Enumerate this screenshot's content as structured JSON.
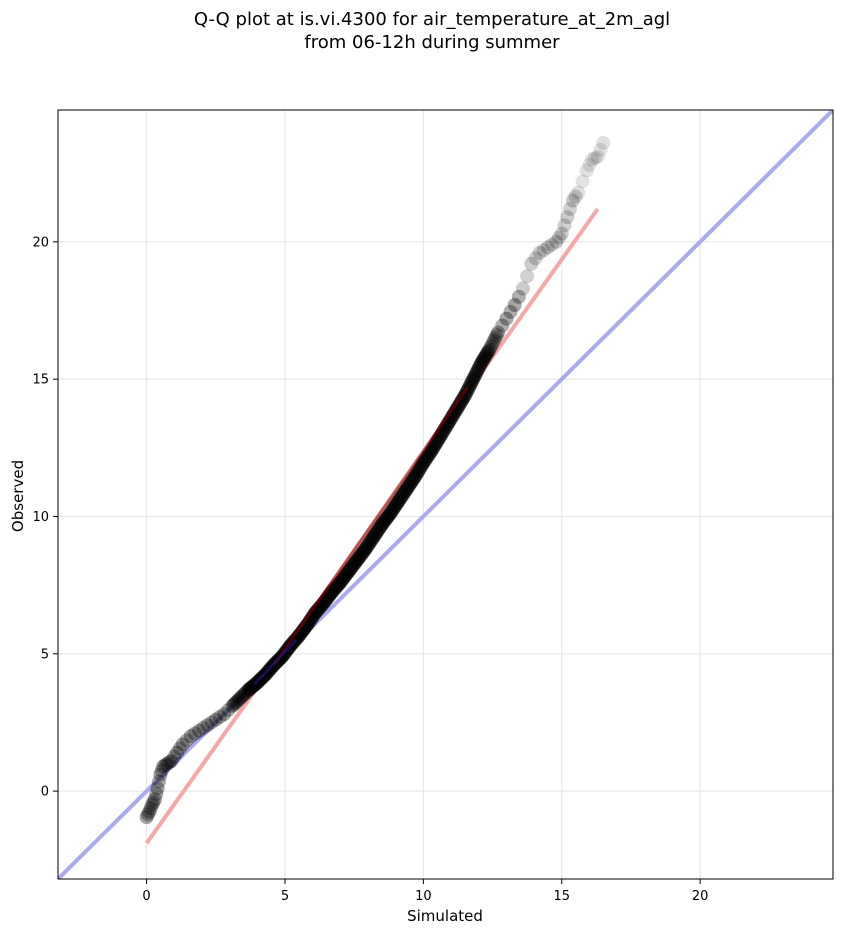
{
  "chart_data": {
    "type": "scatter",
    "title_lines": [
      "Q-Q plot at is.vi.4300 for air_temperature_at_2m_agl",
      "from 06-12h during summer"
    ],
    "xlabel": "Simulated",
    "ylabel": "Observed",
    "xlim": [
      -3.2,
      24.8
    ],
    "ylim": [
      -3.2,
      24.8
    ],
    "xticks": [
      0,
      5,
      10,
      15,
      20
    ],
    "yticks": [
      0,
      5,
      10,
      15,
      20
    ],
    "grid": true,
    "colors": {
      "points": "#000000",
      "identity_line": "#aaaaee",
      "fit_line": "#f4a8a8",
      "fit_core_dark": "#8b0000",
      "fit_core_blue": "#1a1a8a",
      "grid": "#e8e8e8",
      "axes": "#000000"
    },
    "quantiles": [
      {
        "x": 0.0,
        "y": -0.95
      },
      {
        "x": 0.1,
        "y": -0.75
      },
      {
        "x": 0.2,
        "y": -0.5
      },
      {
        "x": 0.3,
        "y": -0.3
      },
      {
        "x": 0.4,
        "y": 0.1
      },
      {
        "x": 0.5,
        "y": 0.6
      },
      {
        "x": 0.6,
        "y": 0.9
      },
      {
        "x": 0.75,
        "y": 1.0
      },
      {
        "x": 0.9,
        "y": 1.1
      },
      {
        "x": 1.1,
        "y": 1.4
      },
      {
        "x": 1.3,
        "y": 1.7
      },
      {
        "x": 1.6,
        "y": 2.0
      },
      {
        "x": 1.9,
        "y": 2.2
      },
      {
        "x": 2.2,
        "y": 2.4
      },
      {
        "x": 2.5,
        "y": 2.6
      },
      {
        "x": 2.8,
        "y": 2.8
      },
      {
        "x": 3.1,
        "y": 3.1
      },
      {
        "x": 3.4,
        "y": 3.4
      },
      {
        "x": 3.7,
        "y": 3.7
      },
      {
        "x": 4.0,
        "y": 3.95
      },
      {
        "x": 4.3,
        "y": 4.25
      },
      {
        "x": 4.6,
        "y": 4.6
      },
      {
        "x": 4.9,
        "y": 4.9
      },
      {
        "x": 5.2,
        "y": 5.3
      },
      {
        "x": 5.5,
        "y": 5.65
      },
      {
        "x": 5.8,
        "y": 6.05
      },
      {
        "x": 6.1,
        "y": 6.5
      },
      {
        "x": 6.4,
        "y": 6.85
      },
      {
        "x": 6.7,
        "y": 7.25
      },
      {
        "x": 7.0,
        "y": 7.6
      },
      {
        "x": 7.3,
        "y": 8.0
      },
      {
        "x": 7.6,
        "y": 8.4
      },
      {
        "x": 7.9,
        "y": 8.8
      },
      {
        "x": 8.2,
        "y": 9.25
      },
      {
        "x": 8.5,
        "y": 9.7
      },
      {
        "x": 8.8,
        "y": 10.1
      },
      {
        "x": 9.1,
        "y": 10.55
      },
      {
        "x": 9.4,
        "y": 11.0
      },
      {
        "x": 9.7,
        "y": 11.45
      },
      {
        "x": 10.0,
        "y": 11.95
      },
      {
        "x": 10.3,
        "y": 12.4
      },
      {
        "x": 10.6,
        "y": 12.9
      },
      {
        "x": 10.9,
        "y": 13.4
      },
      {
        "x": 11.2,
        "y": 13.9
      },
      {
        "x": 11.5,
        "y": 14.4
      },
      {
        "x": 11.8,
        "y": 15.0
      },
      {
        "x": 12.1,
        "y": 15.6
      },
      {
        "x": 12.4,
        "y": 16.1
      },
      {
        "x": 12.7,
        "y": 16.7
      },
      {
        "x": 13.0,
        "y": 17.2
      },
      {
        "x": 13.3,
        "y": 17.7
      },
      {
        "x": 13.6,
        "y": 18.3
      },
      {
        "x": 13.9,
        "y": 19.2
      },
      {
        "x": 14.2,
        "y": 19.6
      },
      {
        "x": 14.5,
        "y": 19.8
      },
      {
        "x": 14.8,
        "y": 20.0
      },
      {
        "x": 15.0,
        "y": 20.3
      },
      {
        "x": 15.2,
        "y": 20.9
      },
      {
        "x": 15.4,
        "y": 21.5
      },
      {
        "x": 15.6,
        "y": 21.8
      },
      {
        "x": 15.9,
        "y": 22.6
      },
      {
        "x": 16.1,
        "y": 23.0
      },
      {
        "x": 16.3,
        "y": 23.1
      },
      {
        "x": 16.5,
        "y": 23.6
      }
    ],
    "fit_line": {
      "x": [
        0.0,
        16.3
      ],
      "y": [
        -1.9,
        21.2
      ]
    },
    "identity_line": {
      "x": [
        -3.2,
        24.8
      ],
      "y": [
        -3.2,
        24.8
      ]
    }
  }
}
